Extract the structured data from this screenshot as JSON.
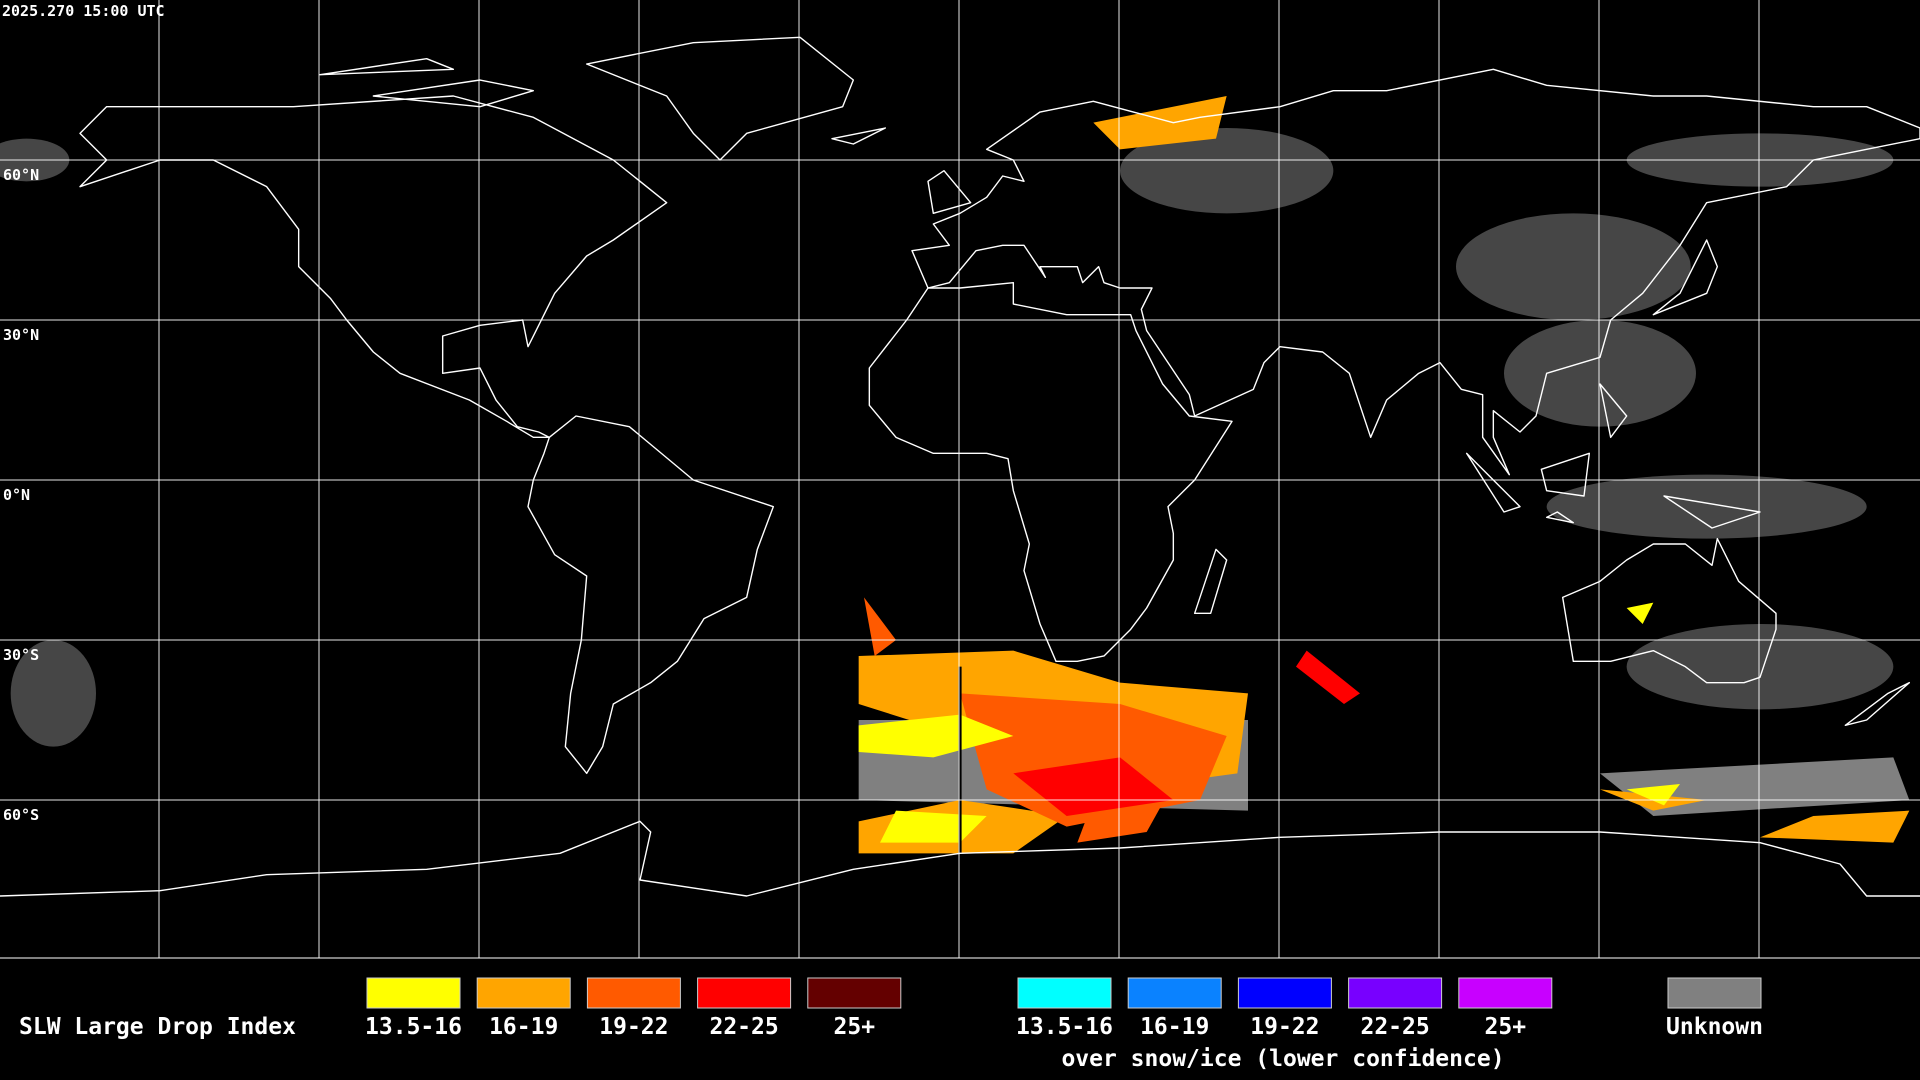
{
  "timestamp": "2025.270 15:00 UTC",
  "latitude_labels": [
    "60°N",
    "30°N",
    "0°N",
    "30°S",
    "60°S"
  ],
  "legend": {
    "title": "SLW Large Drop Index",
    "items": [
      {
        "label": "13.5-16",
        "color": "#ffff00"
      },
      {
        "label": "16-19",
        "color": "#ffa500"
      },
      {
        "label": "19-22",
        "color": "#ff5a00"
      },
      {
        "label": "22-25",
        "color": "#ff0000"
      },
      {
        "label": "25+",
        "color": "#640000"
      }
    ],
    "snow_items": [
      {
        "label": "13.5-16",
        "color": "#00ffff"
      },
      {
        "label": "16-19",
        "color": "#0a82ff"
      },
      {
        "label": "19-22",
        "color": "#0000ff"
      },
      {
        "label": "22-25",
        "color": "#7800ff"
      },
      {
        "label": "25+",
        "color": "#c800ff"
      }
    ],
    "snow_caption": "over snow/ice (lower confidence)",
    "unknown": {
      "label": "Unknown",
      "color": "#808080"
    }
  }
}
